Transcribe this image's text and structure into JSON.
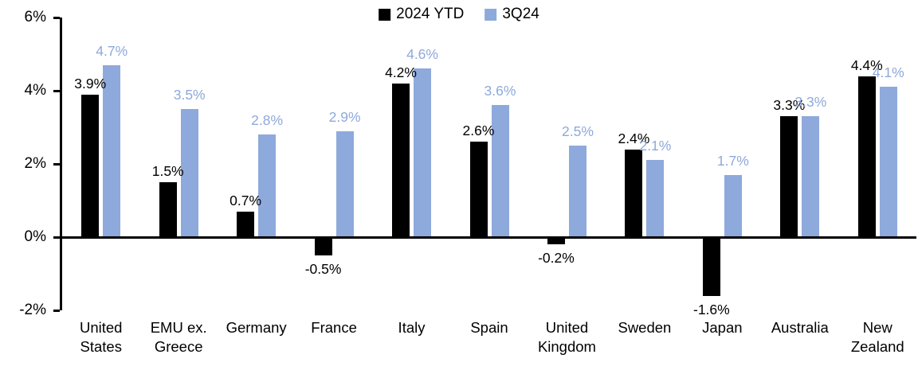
{
  "chart_data": {
    "type": "bar",
    "title": "",
    "xlabel": "",
    "ylabel": "",
    "categories": [
      "United States",
      "EMU ex. Greece",
      "Germany",
      "France",
      "Italy",
      "Spain",
      "United Kingdom",
      "Sweden",
      "Japan",
      "Australia",
      "New Zealand"
    ],
    "series": [
      {
        "name": "2024 YTD",
        "color": "#000000",
        "values": [
          3.9,
          1.5,
          0.7,
          -0.5,
          4.2,
          2.6,
          -0.2,
          2.4,
          -1.6,
          3.3,
          4.4
        ],
        "labels": [
          "3.9%",
          "1.5%",
          "0.7%",
          "-0.5%",
          "4.2%",
          "2.6%",
          "-0.2%",
          "2.4%",
          "-1.6%",
          "3.3%",
          "4.4%"
        ]
      },
      {
        "name": "3Q24",
        "color": "#8EA9DB",
        "values": [
          4.7,
          3.5,
          2.8,
          2.9,
          4.6,
          3.6,
          2.5,
          2.1,
          1.7,
          3.3,
          4.1
        ],
        "labels": [
          "4.7%",
          "3.5%",
          "2.8%",
          "2.9%",
          "4.6%",
          "3.6%",
          "2.5%",
          "2.1%",
          "1.7%",
          "3.3%",
          "4.1%"
        ]
      }
    ],
    "ylim": [
      -2,
      6
    ],
    "y_tick_step": 2,
    "y_tick_labels": [
      "6%",
      "4%",
      "2%",
      "0%",
      "-2%"
    ],
    "grid": false,
    "legend_position": "top-center",
    "axis_color": "#000000"
  }
}
